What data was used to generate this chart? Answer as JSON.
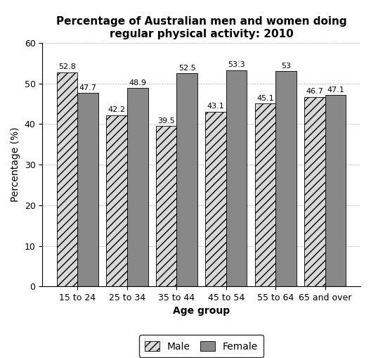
{
  "title": "Percentage of Australian men and women doing\nregular physical activity: 2010",
  "categories": [
    "15 to 24",
    "25 to 34",
    "35 to 44",
    "45 to 54",
    "55 to 64",
    "65 and over"
  ],
  "male_values": [
    52.8,
    42.2,
    39.5,
    43.1,
    45.1,
    46.7
  ],
  "female_values": [
    47.7,
    48.9,
    52.5,
    53.3,
    53.0,
    47.1
  ],
  "xlabel": "Age group",
  "ylabel": "Percentage (%)",
  "ylim": [
    0,
    60
  ],
  "yticks": [
    0,
    10,
    20,
    30,
    40,
    50,
    60
  ],
  "male_color": "#d8d8d8",
  "female_color": "#888888",
  "male_hatch": "///",
  "female_hatch": "",
  "bar_width": 0.42,
  "title_fontsize": 11,
  "label_fontsize": 10,
  "tick_fontsize": 9,
  "annotation_fontsize": 8,
  "legend_labels": [
    "Male",
    "Female"
  ],
  "background_color": "#ffffff"
}
